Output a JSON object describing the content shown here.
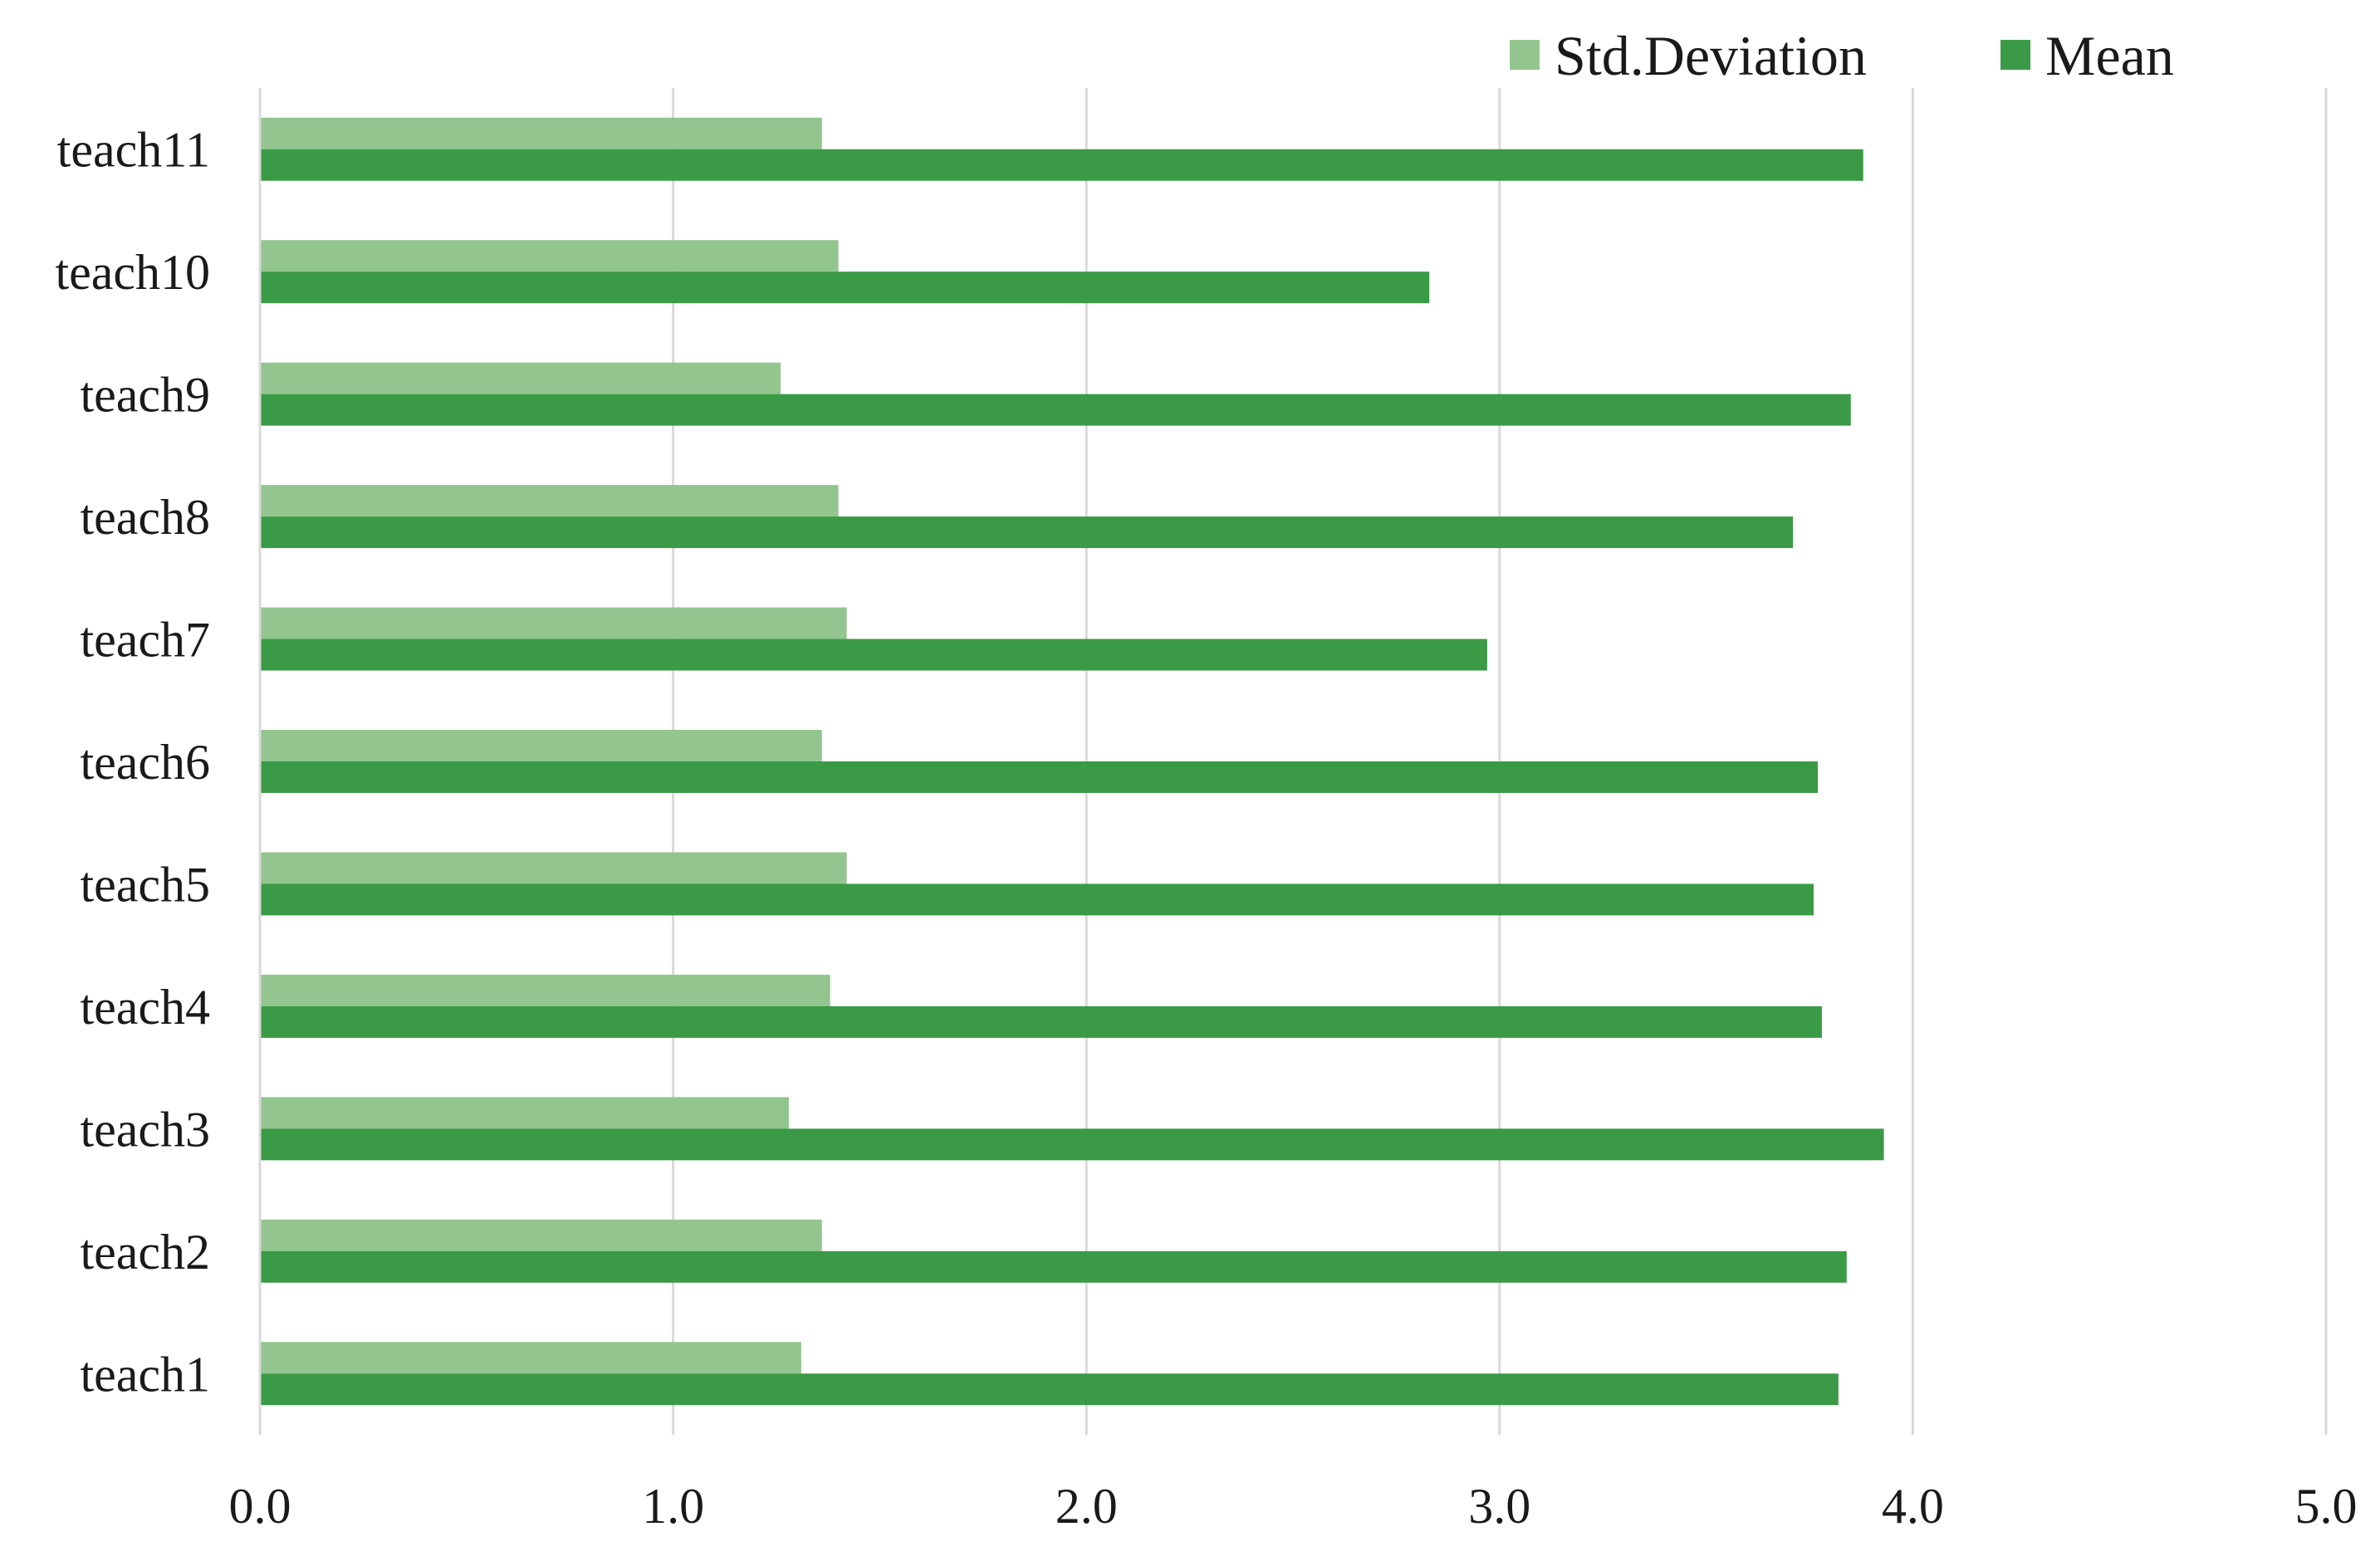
{
  "chart_data": {
    "type": "bar",
    "orientation": "horizontal",
    "categories": [
      "teach1",
      "teach2",
      "teach3",
      "teach4",
      "teach5",
      "teach6",
      "teach7",
      "teach8",
      "teach9",
      "teach10",
      "teach11"
    ],
    "series": [
      {
        "name": "Std.Deviation",
        "color": "#93c58f",
        "values": [
          1.31,
          1.36,
          1.28,
          1.38,
          1.42,
          1.36,
          1.42,
          1.4,
          1.26,
          1.4,
          1.36
        ]
      },
      {
        "name": "Mean",
        "color": "#3a9a45",
        "values": [
          3.82,
          3.84,
          3.93,
          3.78,
          3.76,
          3.77,
          2.97,
          3.71,
          3.85,
          2.83,
          3.88
        ]
      }
    ],
    "xlim": [
      0,
      5
    ],
    "xticks": [
      0,
      1,
      2,
      3,
      4,
      5
    ],
    "xtick_labels": [
      "0.0",
      "1.0",
      "2.0",
      "3.0",
      "4.0",
      "5.0"
    ],
    "grid": "vertical",
    "legend_position": "top-right",
    "title": "",
    "xlabel": "",
    "ylabel": ""
  }
}
